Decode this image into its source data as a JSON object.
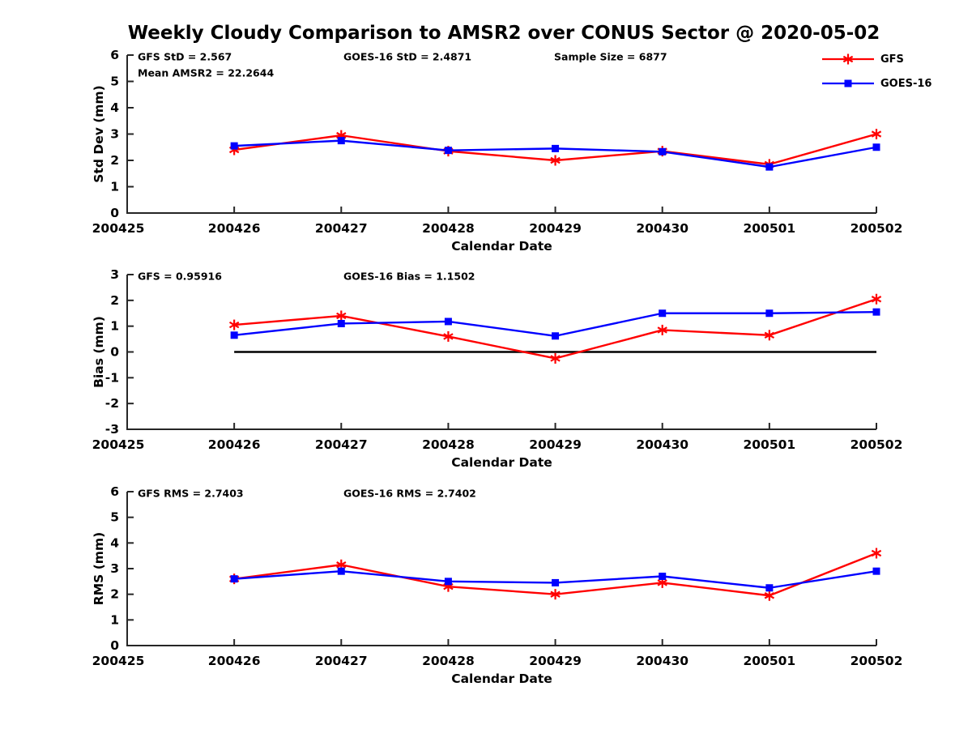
{
  "title": "Weekly Cloudy Comparison to AMSR2 over CONUS Sector @ 2020-05-02",
  "colors": {
    "gfs": "#ff0000",
    "goes16": "#0000ff",
    "axis": "#262626",
    "zero_line": "#000000"
  },
  "legend": {
    "items": [
      {
        "label": "GFS",
        "color": "#ff0000",
        "marker": "asterisk"
      },
      {
        "label": "GOES-16",
        "color": "#0000ff",
        "marker": "square"
      }
    ]
  },
  "x_axis": {
    "label": "Calendar Date",
    "ticks": [
      "200425",
      "200426",
      "200427",
      "200428",
      "200429",
      "200430",
      "200501",
      "200502"
    ]
  },
  "chart_data": [
    {
      "type": "line",
      "ylabel": "Std Dev (mm)",
      "xlabel": "Calendar Date",
      "ylim": [
        0,
        6
      ],
      "yticks": [
        0,
        1,
        2,
        3,
        4,
        5,
        6
      ],
      "categories": [
        "200426",
        "200427",
        "200428",
        "200429",
        "200430",
        "200501",
        "200502"
      ],
      "annotations": [
        {
          "text": "GFS StD = 2.567",
          "col": 0,
          "row": 0
        },
        {
          "text": "Mean AMSR2 = 22.2644",
          "col": 0,
          "row": 1
        },
        {
          "text": "GOES-16 StD = 2.4871",
          "col": 1,
          "row": 0
        },
        {
          "text": "Sample Size = 6877",
          "col": 2,
          "row": 0
        }
      ],
      "zero_line": false,
      "series": [
        {
          "name": "GFS",
          "color": "#ff0000",
          "marker": "asterisk",
          "values": [
            2.4,
            2.95,
            2.35,
            2.0,
            2.35,
            1.85,
            3.0
          ]
        },
        {
          "name": "GOES-16",
          "color": "#0000ff",
          "marker": "square",
          "values": [
            2.55,
            2.75,
            2.38,
            2.45,
            2.33,
            1.75,
            2.5
          ]
        }
      ]
    },
    {
      "type": "line",
      "ylabel": "Bias (mm)",
      "xlabel": "Calendar Date",
      "ylim": [
        -3,
        3
      ],
      "yticks": [
        -3,
        -2,
        -1,
        0,
        1,
        2,
        3
      ],
      "categories": [
        "200426",
        "200427",
        "200428",
        "200429",
        "200430",
        "200501",
        "200502"
      ],
      "annotations": [
        {
          "text": "GFS = 0.95916",
          "col": 0,
          "row": 0
        },
        {
          "text": "GOES-16 Bias  = 1.1502",
          "col": 1,
          "row": 0
        }
      ],
      "zero_line": true,
      "series": [
        {
          "name": "GFS",
          "color": "#ff0000",
          "marker": "asterisk",
          "values": [
            1.05,
            1.4,
            0.6,
            -0.25,
            0.85,
            0.65,
            2.05
          ]
        },
        {
          "name": "GOES-16",
          "color": "#0000ff",
          "marker": "square",
          "values": [
            0.65,
            1.1,
            1.18,
            0.62,
            1.5,
            1.5,
            1.55
          ]
        }
      ]
    },
    {
      "type": "line",
      "ylabel": "RMS (mm)",
      "xlabel": "Calendar Date",
      "ylim": [
        0,
        6
      ],
      "yticks": [
        0,
        1,
        2,
        3,
        4,
        5,
        6
      ],
      "categories": [
        "200426",
        "200427",
        "200428",
        "200429",
        "200430",
        "200501",
        "200502"
      ],
      "annotations": [
        {
          "text": "GFS RMS = 2.7403",
          "col": 0,
          "row": 0
        },
        {
          "text": "GOES-16 RMS = 2.7402",
          "col": 1,
          "row": 0
        }
      ],
      "zero_line": false,
      "series": [
        {
          "name": "GFS",
          "color": "#ff0000",
          "marker": "asterisk",
          "values": [
            2.6,
            3.15,
            2.3,
            2.0,
            2.45,
            1.95,
            3.6
          ]
        },
        {
          "name": "GOES-16",
          "color": "#0000ff",
          "marker": "square",
          "values": [
            2.6,
            2.9,
            2.5,
            2.45,
            2.7,
            2.25,
            2.9
          ]
        }
      ]
    }
  ]
}
